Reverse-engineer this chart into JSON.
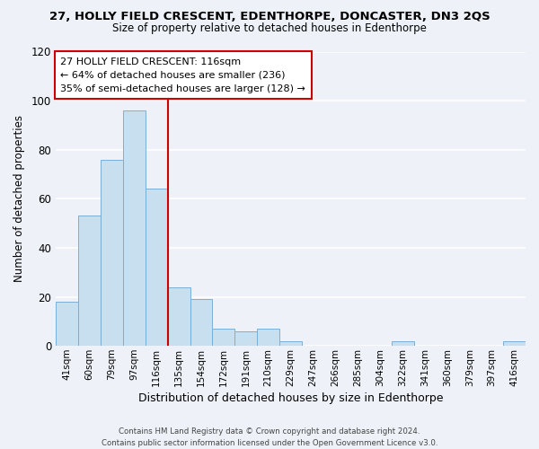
{
  "title1": "27, HOLLY FIELD CRESCENT, EDENTHORPE, DONCASTER, DN3 2QS",
  "title2": "Size of property relative to detached houses in Edenthorpe",
  "xlabel": "Distribution of detached houses by size in Edenthorpe",
  "ylabel": "Number of detached properties",
  "bin_labels": [
    "41sqm",
    "60sqm",
    "79sqm",
    "97sqm",
    "116sqm",
    "135sqm",
    "154sqm",
    "172sqm",
    "191sqm",
    "210sqm",
    "229sqm",
    "247sqm",
    "266sqm",
    "285sqm",
    "304sqm",
    "322sqm",
    "341sqm",
    "360sqm",
    "379sqm",
    "397sqm",
    "416sqm"
  ],
  "bar_values": [
    18,
    53,
    76,
    96,
    64,
    24,
    19,
    7,
    6,
    7,
    2,
    0,
    0,
    0,
    0,
    2,
    0,
    0,
    0,
    0,
    2
  ],
  "bar_color": "#c8dff0",
  "bar_edge_color": "#7bafd4",
  "vline_color": "#cc0000",
  "vline_index": 4,
  "ylim": [
    0,
    120
  ],
  "yticks": [
    0,
    20,
    40,
    60,
    80,
    100,
    120
  ],
  "annotation_line1": "27 HOLLY FIELD CRESCENT: 116sqm",
  "annotation_line2": "← 64% of detached houses are smaller (236)",
  "annotation_line3": "35% of semi-detached houses are larger (128) →",
  "footer1": "Contains HM Land Registry data © Crown copyright and database right 2024.",
  "footer2": "Contains public sector information licensed under the Open Government Licence v3.0.",
  "background_color": "#eef2f8",
  "grid_color": "#ffffff",
  "annotation_box_bg": "#ffffff",
  "annotation_box_edge": "#cc0000"
}
